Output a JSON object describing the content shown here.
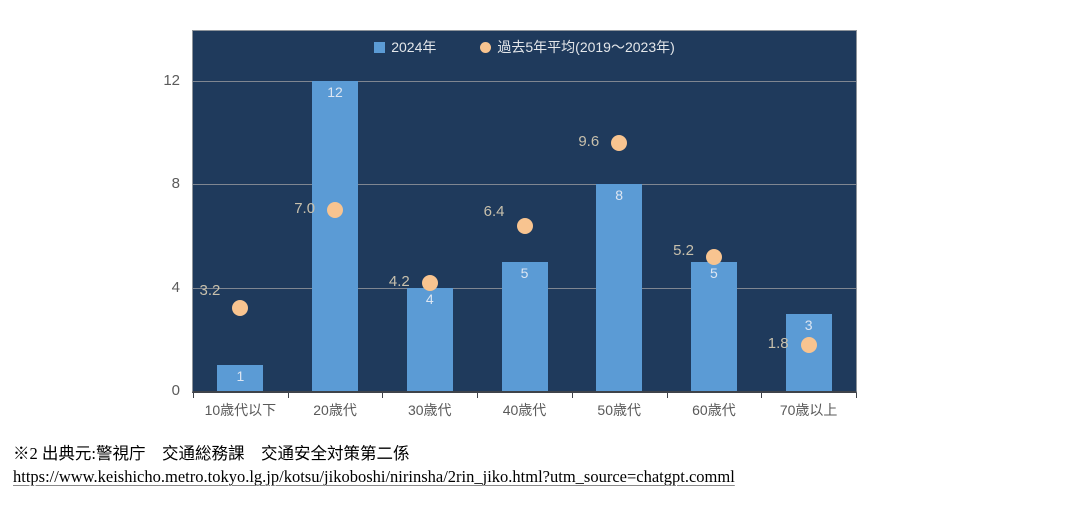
{
  "chart_data": {
    "type": "bar",
    "subtype": "combo-bar-scatter",
    "title": "",
    "categories": [
      "10歳代以下",
      "20歳代",
      "30歳代",
      "40歳代",
      "50歳代",
      "60歳代",
      "70歳以上"
    ],
    "series": [
      {
        "name": "2024年",
        "type": "bar",
        "color": "#5B9BD5",
        "values": [
          1,
          12,
          4,
          5,
          8,
          5,
          3
        ],
        "labels": [
          "1",
          "12",
          "4",
          "5",
          "8",
          "5",
          "3"
        ]
      },
      {
        "name": "過去5年平均(2019～2023年)",
        "type": "scatter",
        "color": "#F8C490",
        "values": [
          3.2,
          7.0,
          4.2,
          6.4,
          9.6,
          5.2,
          1.8
        ],
        "labels": [
          "3.2",
          "7.0",
          "4.2",
          "6.4",
          "9.6",
          "5.2",
          "1.8"
        ]
      }
    ],
    "xlabel": "",
    "ylabel": "",
    "yticks": [
      0,
      4,
      8,
      12
    ],
    "ylim": [
      0,
      14
    ],
    "grid": true,
    "legend_position": "top-center",
    "plot_background": "#1F3A5C"
  },
  "colors": {
    "plot_background": "#1F3A5C",
    "bar": "#5B9BD5",
    "point": "#F8C490",
    "gridline": "#7F8691",
    "bar_label": "#DDE6F2",
    "point_label": "#C8C0AC",
    "axis_label": "#595959",
    "page_background": "#FFFFFF"
  },
  "source": {
    "line1": "※2 出典元:警視庁　交通総務課　交通安全対策第二係",
    "line2": "https://www.keishicho.metro.tokyo.lg.jp/kotsu/jikoboshi/nirinsha/2rin_jiko.html?utm_source=chatgpt.comml"
  }
}
